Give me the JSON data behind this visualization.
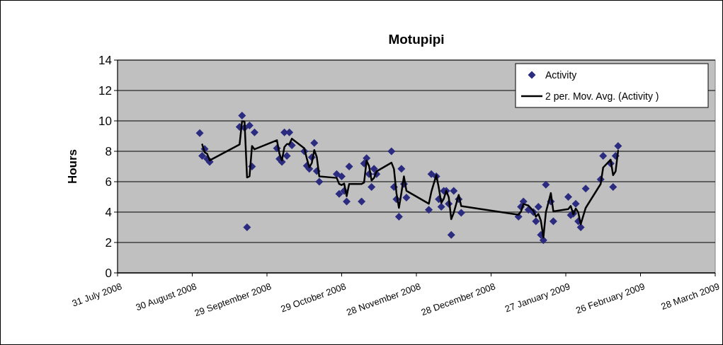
{
  "chart_data": {
    "type": "scatter",
    "title": "Motupipi",
    "ylabel": "Hours",
    "xlim": [
      "2008-07-31",
      "2009-03-28"
    ],
    "xticks": [
      {
        "value": "2008-07-31",
        "label": "31 July 2008"
      },
      {
        "value": "2008-08-30",
        "label": "30 August 2008"
      },
      {
        "value": "2008-09-29",
        "label": "29 September 2008"
      },
      {
        "value": "2008-10-29",
        "label": "29 October 2008"
      },
      {
        "value": "2008-11-28",
        "label": "28 November 2008"
      },
      {
        "value": "2008-12-28",
        "label": "28 December 2008"
      },
      {
        "value": "2009-01-27",
        "label": "27 January 2009"
      },
      {
        "value": "2009-02-26",
        "label": "26 February 2009"
      },
      {
        "value": "2009-03-28",
        "label": "28 March 2009"
      }
    ],
    "ylim": [
      0,
      14
    ],
    "yticks": [
      0,
      2,
      4,
      6,
      8,
      10,
      12,
      14
    ],
    "grid": "y",
    "legend": "top right",
    "series": [
      {
        "name": "Activity",
        "marker": "diamond",
        "color": "#2b2b80",
        "x": [
          "2008-09-02",
          "2008-09-03",
          "2008-09-04",
          "2008-09-05",
          "2008-09-06",
          "2008-09-18",
          "2008-09-19",
          "2008-09-20",
          "2008-09-21",
          "2008-09-22",
          "2008-09-23",
          "2008-09-24",
          "2008-10-03",
          "2008-10-04",
          "2008-10-05",
          "2008-10-06",
          "2008-10-07",
          "2008-10-08",
          "2008-10-09",
          "2008-10-14",
          "2008-10-15",
          "2008-10-16",
          "2008-10-17",
          "2008-10-18",
          "2008-10-19",
          "2008-10-20",
          "2008-10-27",
          "2008-10-28",
          "2008-10-29",
          "2008-10-30",
          "2008-10-31",
          "2008-11-01",
          "2008-11-06",
          "2008-11-07",
          "2008-11-08",
          "2008-11-09",
          "2008-11-10",
          "2008-11-11",
          "2008-11-12",
          "2008-11-18",
          "2008-11-19",
          "2008-11-20",
          "2008-11-21",
          "2008-11-22",
          "2008-11-23",
          "2008-11-24",
          "2008-12-03",
          "2008-12-04",
          "2008-12-06",
          "2008-12-07",
          "2008-12-08",
          "2008-12-09",
          "2008-12-10",
          "2008-12-11",
          "2008-12-12",
          "2008-12-13",
          "2008-12-15",
          "2008-12-16",
          "2009-01-08",
          "2009-01-09",
          "2009-01-10",
          "2009-01-12",
          "2009-01-14",
          "2009-01-15",
          "2009-01-16",
          "2009-01-17",
          "2009-01-18",
          "2009-01-19",
          "2009-01-21",
          "2009-01-22",
          "2009-01-28",
          "2009-01-29",
          "2009-01-30",
          "2009-01-31",
          "2009-02-01",
          "2009-02-02",
          "2009-02-04",
          "2009-02-10",
          "2009-02-11",
          "2009-02-14",
          "2009-02-15",
          "2009-02-16",
          "2009-02-17"
        ],
        "values": [
          9.2,
          7.7,
          8.15,
          7.5,
          7.3,
          9.6,
          10.35,
          9.55,
          3.0,
          9.7,
          7.0,
          9.25,
          8.2,
          7.5,
          7.3,
          9.25,
          7.7,
          9.25,
          8.4,
          8.0,
          7.05,
          6.85,
          7.6,
          8.55,
          6.7,
          6.0,
          6.5,
          5.2,
          6.35,
          5.4,
          4.7,
          7.0,
          4.7,
          7.2,
          7.55,
          6.5,
          5.65,
          6.85,
          6.5,
          8.0,
          5.65,
          4.85,
          3.7,
          6.85,
          5.85,
          4.95,
          4.15,
          6.5,
          6.35,
          4.85,
          4.35,
          5.4,
          5.4,
          4.55,
          2.5,
          5.4,
          4.85,
          3.95,
          3.7,
          4.35,
          4.7,
          4.15,
          4.0,
          3.4,
          4.35,
          2.5,
          2.15,
          5.8,
          4.7,
          3.4,
          5.0,
          3.8,
          3.9,
          4.55,
          3.4,
          3.0,
          5.55,
          6.15,
          7.7,
          7.2,
          5.65,
          7.7,
          8.35
        ]
      },
      {
        "name": "2 per. Mov. Avg. (Activity )",
        "type": "line",
        "line_style": "solid",
        "color": "#000000",
        "x": [
          "2008-09-03",
          "2008-09-04",
          "2008-09-05",
          "2008-09-06",
          "2008-09-18",
          "2008-09-19",
          "2008-09-20",
          "2008-09-21",
          "2008-09-22",
          "2008-09-23",
          "2008-09-24",
          "2008-10-03",
          "2008-10-04",
          "2008-10-05",
          "2008-10-06",
          "2008-10-07",
          "2008-10-08",
          "2008-10-09",
          "2008-10-14",
          "2008-10-15",
          "2008-10-16",
          "2008-10-17",
          "2008-10-18",
          "2008-10-19",
          "2008-10-20",
          "2008-10-27",
          "2008-10-28",
          "2008-10-29",
          "2008-10-30",
          "2008-10-31",
          "2008-11-01",
          "2008-11-06",
          "2008-11-07",
          "2008-11-08",
          "2008-11-09",
          "2008-11-10",
          "2008-11-11",
          "2008-11-12",
          "2008-11-18",
          "2008-11-19",
          "2008-11-20",
          "2008-11-21",
          "2008-11-22",
          "2008-11-23",
          "2008-11-24",
          "2008-12-03",
          "2008-12-04",
          "2008-12-06",
          "2008-12-07",
          "2008-12-08",
          "2008-12-09",
          "2008-12-10",
          "2008-12-11",
          "2008-12-12",
          "2008-12-13",
          "2008-12-15",
          "2008-12-16",
          "2009-01-08",
          "2009-01-09",
          "2009-01-10",
          "2009-01-12",
          "2009-01-14",
          "2009-01-15",
          "2009-01-16",
          "2009-01-17",
          "2009-01-18",
          "2009-01-19",
          "2009-01-21",
          "2009-01-22",
          "2009-01-28",
          "2009-01-29",
          "2009-01-30",
          "2009-01-31",
          "2009-02-01",
          "2009-02-02",
          "2009-02-04",
          "2009-02-10",
          "2009-02-11",
          "2009-02-14",
          "2009-02-15",
          "2009-02-16",
          "2009-02-17"
        ],
        "values": [
          8.45,
          7.93,
          7.83,
          7.4,
          8.45,
          9.98,
          9.95,
          6.28,
          6.35,
          8.35,
          8.13,
          8.73,
          7.85,
          7.4,
          8.28,
          8.48,
          8.48,
          8.83,
          8.2,
          7.53,
          6.95,
          7.23,
          8.08,
          7.63,
          6.35,
          6.25,
          5.85,
          5.78,
          5.88,
          5.05,
          5.85,
          5.85,
          5.95,
          7.38,
          7.03,
          6.08,
          6.25,
          6.68,
          7.25,
          6.83,
          5.25,
          4.28,
          5.28,
          6.35,
          5.4,
          4.55,
          5.33,
          6.43,
          5.6,
          4.6,
          4.88,
          5.4,
          4.98,
          3.53,
          3.95,
          5.13,
          4.4,
          3.83,
          4.03,
          4.53,
          4.43,
          4.08,
          3.7,
          3.88,
          3.43,
          2.33,
          3.98,
          5.25,
          4.05,
          4.2,
          4.4,
          3.85,
          4.23,
          3.98,
          3.2,
          4.28,
          5.85,
          6.93,
          7.45,
          6.43,
          6.68,
          8.03
        ]
      }
    ]
  }
}
